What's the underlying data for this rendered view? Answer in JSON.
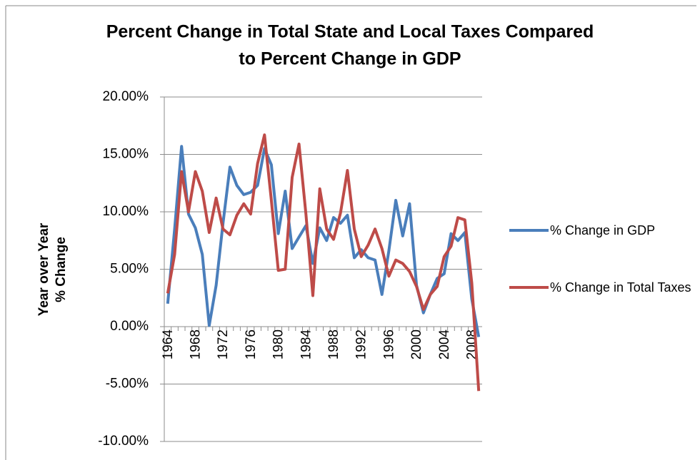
{
  "chart_data": {
    "type": "line",
    "title": [
      "Percent Change in Total State and Local Taxes Compared",
      "to Percent Change in GDP"
    ],
    "y_label": [
      "Year over Year",
      "% Change"
    ],
    "categories": [
      "1964",
      null,
      null,
      null,
      "1968",
      null,
      null,
      null,
      "1972",
      null,
      null,
      null,
      "1976",
      null,
      null,
      null,
      "1980",
      null,
      null,
      null,
      "1984",
      null,
      null,
      null,
      "1988",
      null,
      null,
      null,
      "1992",
      null,
      null,
      null,
      "1996",
      null,
      null,
      null,
      "2000",
      null,
      null,
      null,
      "2004",
      null,
      null,
      null,
      "2008",
      null
    ],
    "series": [
      {
        "name": "% Change in GDP",
        "color": "#4a7ebb",
        "values": [
          2.0,
          8.5,
          15.7,
          9.8,
          8.6,
          6.3,
          0.1,
          3.6,
          9.0,
          13.9,
          12.3,
          11.5,
          11.7,
          12.3,
          15.5,
          14.1,
          8.1,
          11.8,
          6.8,
          7.8,
          8.8,
          5.5,
          8.6,
          7.5,
          9.5,
          9.0,
          9.7,
          6.0,
          6.7,
          6.0,
          5.8,
          2.8,
          6.6,
          11.0,
          7.9,
          10.7,
          3.6,
          1.2,
          2.8,
          4.2,
          4.6,
          8.1,
          7.5,
          8.2,
          2.4,
          -0.9
        ]
      },
      {
        "name": "% Change in Total Taxes",
        "color": "#be4b48",
        "values": [
          2.9,
          6.3,
          13.5,
          10.0,
          13.5,
          11.8,
          8.2,
          11.2,
          8.5,
          8.0,
          9.7,
          10.7,
          9.8,
          14.2,
          16.7,
          11.0,
          4.9,
          5.0,
          13.0,
          15.9,
          9.8,
          2.7,
          12.0,
          8.5,
          7.6,
          9.9,
          13.6,
          8.5,
          6.1,
          7.1,
          8.5,
          6.8,
          4.4,
          5.8,
          5.5,
          4.8,
          3.5,
          1.5,
          2.8,
          3.5,
          6.1,
          7.0,
          9.5,
          9.3,
          3.8,
          -5.6
        ]
      }
    ],
    "ylim": [
      -10,
      20
    ],
    "yticks": [
      {
        "value": -10,
        "label": "-10.00%"
      },
      {
        "value": -5,
        "label": "-5.00%"
      },
      {
        "value": 0,
        "label": "0.00%"
      },
      {
        "value": 5,
        "label": "5.00%"
      },
      {
        "value": 10,
        "label": "10.00%"
      },
      {
        "value": 15,
        "label": "15.00%"
      },
      {
        "value": 20,
        "label": "20.00%"
      }
    ],
    "grid": true,
    "legend": "right"
  }
}
